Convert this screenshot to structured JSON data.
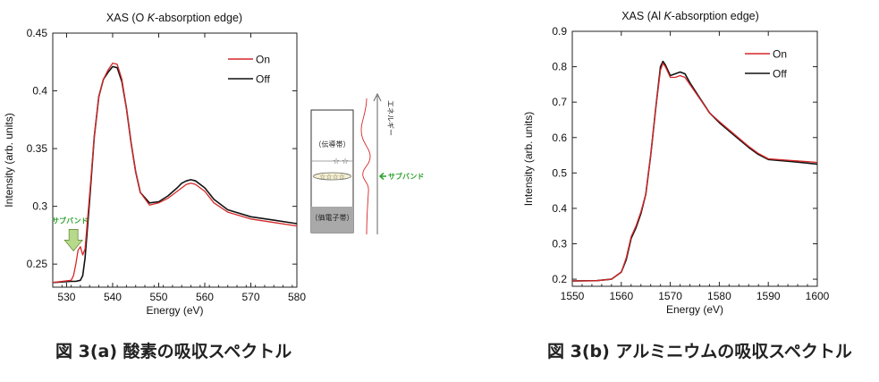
{
  "chart_data": [
    {
      "type": "line",
      "title_prefix": "XAS  (O ",
      "title_italic": "K",
      "title_suffix": "-absorption edge)",
      "xlabel": "Energy (eV)",
      "ylabel": "Intensity (arb. units)",
      "xlim": [
        527,
        580
      ],
      "ylim": [
        0.23,
        0.45
      ],
      "xticks": [
        530,
        540,
        550,
        560,
        570,
        580
      ],
      "yticks": [
        0.25,
        0.3,
        0.35,
        0.4,
        0.45
      ],
      "ytick_labels": [
        "0.25",
        "0.3",
        "0.35",
        "0.4",
        "0.45"
      ],
      "legend": "top-right",
      "series": [
        {
          "name": "On",
          "color": "#d62728",
          "x": [
            527,
            531,
            531.5,
            532,
            532.5,
            533,
            533.5,
            534,
            535,
            536,
            537,
            538,
            539,
            540,
            541,
            542,
            543,
            544,
            545,
            546,
            548,
            550,
            552,
            554,
            555,
            556,
            557,
            558,
            560,
            562,
            565,
            570,
            575,
            580
          ],
          "y": [
            0.234,
            0.236,
            0.24,
            0.25,
            0.262,
            0.265,
            0.258,
            0.263,
            0.31,
            0.36,
            0.395,
            0.41,
            0.418,
            0.424,
            0.423,
            0.41,
            0.385,
            0.355,
            0.33,
            0.312,
            0.301,
            0.303,
            0.307,
            0.313,
            0.316,
            0.319,
            0.32,
            0.319,
            0.313,
            0.303,
            0.295,
            0.289,
            0.286,
            0.283
          ]
        },
        {
          "name": "Off",
          "color": "#111111",
          "x": [
            527,
            531,
            532,
            533,
            533.5,
            534,
            535,
            536,
            537,
            538,
            539,
            540,
            541,
            542,
            543,
            544,
            545,
            546,
            548,
            550,
            552,
            554,
            555,
            556,
            557,
            558,
            560,
            562,
            565,
            570,
            575,
            580
          ],
          "y": [
            0.234,
            0.235,
            0.235,
            0.236,
            0.24,
            0.255,
            0.305,
            0.36,
            0.395,
            0.41,
            0.416,
            0.421,
            0.42,
            0.408,
            0.385,
            0.355,
            0.33,
            0.312,
            0.303,
            0.304,
            0.309,
            0.316,
            0.32,
            0.322,
            0.323,
            0.322,
            0.316,
            0.306,
            0.297,
            0.291,
            0.288,
            0.285
          ]
        }
      ],
      "annotation": {
        "text": "サブバンド",
        "x": 531.5,
        "y": 0.28,
        "color": "#2ca02c"
      }
    },
    {
      "type": "line",
      "title_prefix": "XAS  (Al ",
      "title_italic": "K",
      "title_suffix": "-absorption edge)",
      "xlabel": "Energy (eV)",
      "ylabel": "Intensity (arb. units)",
      "xlim": [
        1550,
        1600
      ],
      "ylim": [
        0.18,
        0.9
      ],
      "xticks": [
        1550,
        1560,
        1570,
        1580,
        1590,
        1600
      ],
      "yticks": [
        0.2,
        0.3,
        0.4,
        0.5,
        0.6,
        0.7,
        0.8,
        0.9
      ],
      "ytick_labels": [
        "0.2",
        "0.3",
        "0.4",
        "0.5",
        "0.6",
        "0.7",
        "0.8",
        "0.9"
      ],
      "legend": "top-right",
      "series": [
        {
          "name": "On",
          "color": "#d62728",
          "x": [
            1550,
            1555,
            1558,
            1560,
            1561,
            1562,
            1563,
            1564,
            1565,
            1566,
            1567,
            1568,
            1568.5,
            1569,
            1570,
            1571,
            1572,
            1573,
            1574,
            1576,
            1578,
            1580,
            1583,
            1586,
            1588,
            1590,
            1595,
            1600
          ],
          "y": [
            0.195,
            0.196,
            0.2,
            0.22,
            0.26,
            0.32,
            0.35,
            0.39,
            0.44,
            0.55,
            0.68,
            0.79,
            0.81,
            0.8,
            0.77,
            0.77,
            0.775,
            0.77,
            0.75,
            0.71,
            0.67,
            0.645,
            0.61,
            0.575,
            0.555,
            0.54,
            0.535,
            0.53
          ]
        },
        {
          "name": "Off",
          "color": "#111111",
          "x": [
            1550,
            1555,
            1558,
            1560,
            1561,
            1562,
            1563,
            1564,
            1565,
            1566,
            1567,
            1568,
            1568.5,
            1569,
            1570,
            1571,
            1572,
            1573,
            1574,
            1576,
            1578,
            1580,
            1583,
            1586,
            1588,
            1590,
            1595,
            1600
          ],
          "y": [
            0.195,
            0.196,
            0.2,
            0.22,
            0.255,
            0.315,
            0.345,
            0.385,
            0.44,
            0.55,
            0.68,
            0.8,
            0.815,
            0.805,
            0.775,
            0.78,
            0.785,
            0.78,
            0.755,
            0.712,
            0.67,
            0.642,
            0.607,
            0.572,
            0.552,
            0.538,
            0.532,
            0.525
          ]
        }
      ]
    }
  ],
  "diagram": {
    "conduction_band": "（伝導帯）",
    "valence_band": "（価電子帯）",
    "energy_axis": "エネルギー",
    "subband": "サブバンド"
  },
  "captions": {
    "left": "図 3(a)  酸素の吸収スペクトル",
    "right": "図 3(b)  アルミニウムの吸収スペクトル"
  },
  "colors": {
    "on": "#d62728",
    "off": "#111111",
    "subband": "#2ca02c",
    "arrow_fill": "#b6d98b"
  }
}
